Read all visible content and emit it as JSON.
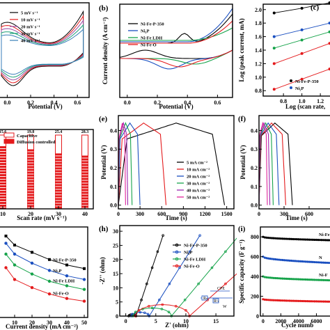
{
  "chart_data": [
    {
      "panel": "a",
      "type": "line",
      "legend": [
        "5 mV s⁻¹",
        "10 mV s⁻¹",
        "20 mV s⁻¹",
        "30 mV s⁻¹",
        "40 mV s⁻¹"
      ],
      "colors": [
        "#000000",
        "#e41a1c",
        "#984ea3",
        "#1a9e77",
        "#377eb8"
      ],
      "xlabel": "Potential (V)",
      "xticks": [
        "0.0",
        "0.2",
        "0.4",
        "0.6"
      ],
      "xlim": [
        -0.05,
        0.7
      ]
    },
    {
      "panel": "b",
      "type": "line",
      "tag": "(b)",
      "legend": [
        "Ni-Fe-P-350",
        "Ni₂P",
        "Ni-Fe LDH",
        "Ni-Fe-O"
      ],
      "colors": [
        "#000000",
        "#1a4fc0",
        "#16a34a",
        "#e41a1c"
      ],
      "xlabel": "Potential (V)",
      "ylabel": "Current density (A cm⁻²)",
      "xticks": [
        "0.0",
        "0.2",
        "0.4",
        "0.6"
      ],
      "xlim": [
        -0.05,
        0.7
      ]
    },
    {
      "panel": "c",
      "type": "scatter",
      "tag": "(c)",
      "xlabel": "Log (scan rate,",
      "ylabel": "Log (peak current, mA)",
      "xticks": [
        "0.8",
        "1.0",
        "1.2"
      ],
      "yticks": [
        "0.8",
        "1.0",
        "1.2",
        "1.4",
        "1.6",
        "1.8",
        "2.0"
      ],
      "xlim": [
        0.58,
        1.35
      ],
      "ylim": [
        0.72,
        2.08
      ],
      "legend": [
        "Ni-Fe-P-350",
        "Ni₂P"
      ],
      "x": [
        0.699,
        1.0,
        1.301
      ],
      "series": [
        {
          "name": "Ni-Fe-P-350",
          "values": [
            1.95,
            2.02,
            2.1
          ]
        },
        {
          "name": "Ni₂P",
          "values": [
            1.6,
            1.7,
            1.8
          ]
        },
        {
          "values": [
            1.43,
            1.55,
            1.67
          ]
        },
        {
          "values": [
            1.2,
            1.35,
            1.5
          ]
        },
        {
          "values": [
            0.82,
            0.97,
            1.12
          ]
        }
      ],
      "colors": [
        "#000000",
        "#1a4fc0",
        "#16a34a",
        "#e41a1c",
        "#e41a1c"
      ]
    },
    {
      "panel": "d",
      "type": "bar",
      "xlabel": "Scan rate (mV s⁻¹)",
      "legend": [
        "Capacitive",
        "Diffusion controlled"
      ],
      "categories": [
        "10",
        "20",
        "30",
        "40"
      ],
      "xticks": [
        "10",
        "20",
        "30",
        "40"
      ],
      "series": [
        {
          "name": "Capacitive",
          "values": [
            15.6,
            19.8,
            25.4,
            28.3
          ]
        },
        {
          "name": "Diffusion controlled",
          "values": [
            84.4,
            80.2,
            74.6,
            71.7
          ]
        }
      ],
      "labels": [
        "15.6",
        "19.8",
        "25.4",
        "28.3"
      ],
      "colors": [
        "#ffffff",
        "#e41a1c"
      ]
    },
    {
      "panel": "e",
      "type": "line",
      "tag": "(e)",
      "xlabel": "Time (s)",
      "ylabel": "Potential (V)",
      "xticks": [
        "0",
        "300",
        "600",
        "900",
        "1200",
        "1500"
      ],
      "yticks": [
        "0.0",
        "0.1",
        "0.2",
        "0.3",
        "0.4"
      ],
      "xlim": [
        0,
        1600
      ],
      "ylim": [
        -0.02,
        0.48
      ],
      "legend": [
        "5 mA cm⁻²",
        "10 mA cm⁻²",
        "20 mA cm⁻²",
        "30 mA cm⁻²",
        "40 mA cm⁻²",
        "50 mA cm⁻²"
      ],
      "colors": [
        "#000000",
        "#e41a1c",
        "#1a4fc0",
        "#16a34a",
        "#9c27b0",
        "#e0249a"
      ],
      "t_charge": [
        800,
        350,
        160,
        100,
        70,
        55
      ],
      "t_end": [
        1470,
        660,
        300,
        190,
        130,
        100
      ]
    },
    {
      "panel": "f",
      "type": "line",
      "tag": "(f)",
      "xlabel": "Time (s)",
      "ylabel": "Potential (V)",
      "xticks": [
        "0",
        "300",
        "600"
      ],
      "yticks": [
        "0.0",
        "0.1",
        "0.2",
        "0.3",
        "0.4"
      ],
      "colors": [
        "#000000",
        "#e41a1c",
        "#1a4fc0",
        "#16a34a",
        "#9c27b0",
        "#e0249a"
      ]
    },
    {
      "panel": "g",
      "type": "line",
      "xlabel": "Current density (mA cm⁻²)",
      "xticks": [
        "10",
        "20",
        "30",
        "40",
        "50"
      ],
      "xlim": [
        0,
        52
      ],
      "categories": [
        5,
        10,
        20,
        30,
        40,
        50
      ],
      "series": [
        {
          "name": "Ni-Fe-P-350",
          "values": [
            0.9,
            0.8,
            0.72,
            0.64,
            0.58,
            0.54
          ]
        },
        {
          "name": "Ni₂P",
          "values": [
            0.82,
            0.7,
            0.6,
            0.52,
            0.46,
            0.42
          ]
        },
        {
          "name": "Ni-Fe LDH",
          "values": [
            0.7,
            0.58,
            0.48,
            0.4,
            0.35,
            0.31
          ]
        },
        {
          "name": "Ni-Fe-O",
          "values": [
            0.55,
            0.42,
            0.33,
            0.26,
            0.21,
            0.18
          ]
        }
      ],
      "colors": [
        "#000000",
        "#1a4fc0",
        "#16a34a",
        "#e41a1c"
      ]
    },
    {
      "panel": "h",
      "type": "line",
      "tag": "(h)",
      "xlabel": "Z' (ohm)",
      "ylabel": "-Z'' (ohm)",
      "xticks": [
        "0",
        "5",
        "10",
        "15"
      ],
      "yticks": [
        "0",
        "5",
        "10",
        "15",
        "20",
        "25",
        "30"
      ],
      "xlim": [
        -1,
        18
      ],
      "ylim": [
        0,
        32
      ],
      "legend": [
        "Ni-Fe-P-350",
        "Ni₂P",
        "Ni-Fe LDH",
        "Ni-Fe-O"
      ],
      "colors": [
        "#000000",
        "#1a4fc0",
        "#16a34a",
        "#e41a1c"
      ],
      "circuit": {
        "cpe": "CPE",
        "rs": "Rₛ",
        "rct": "Rᶜₜ",
        "w": "W"
      }
    },
    {
      "panel": "i",
      "type": "line",
      "tag": "(i)",
      "xlabel": "Cycle numb",
      "ylabel": "Specific capacity (F g⁻¹)",
      "xticks": [
        "0",
        "2000",
        "4000",
        "6000"
      ],
      "yticks": [
        "0",
        "200",
        "400",
        "600",
        "800"
      ],
      "xlim": [
        -300,
        8000
      ],
      "ylim": [
        0,
        900
      ],
      "series": [
        {
          "name": "Ni-Fe-P-350",
          "label": "Ni-Fe",
          "values": [
            800,
            790,
            775,
            765
          ]
        },
        {
          "name": "Ni₂P",
          "label": "N",
          "values": [
            600,
            570,
            548,
            535
          ]
        },
        {
          "name": "Ni-Fe LDH",
          "label": "Ni-F",
          "values": [
            400,
            385,
            370,
            360
          ]
        },
        {
          "name": "Ni-Fe-O",
          "label": "",
          "values": [
            170,
            160,
            150,
            145
          ]
        }
      ],
      "x": [
        0,
        2500,
        5000,
        8000
      ],
      "colors": [
        "#000000",
        "#1a4fc0",
        "#16a34a",
        "#e41a1c"
      ]
    }
  ]
}
